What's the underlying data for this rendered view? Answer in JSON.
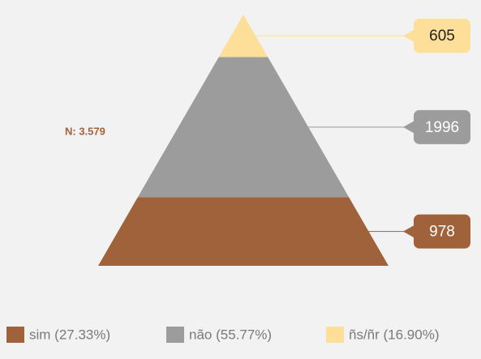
{
  "chart_data": {
    "type": "pyramid",
    "annotation": "N: 3.579",
    "series": [
      {
        "name": "sim (27.33%)",
        "color": "#a0623a",
        "value": 978
      },
      {
        "name": "não (55.77%)",
        "color": "#9c9c9c",
        "value": 1996
      },
      {
        "name": "ñs/ñr (16.90%)",
        "color": "#fddf9a",
        "value": 605
      }
    ],
    "legend": "bottom"
  }
}
